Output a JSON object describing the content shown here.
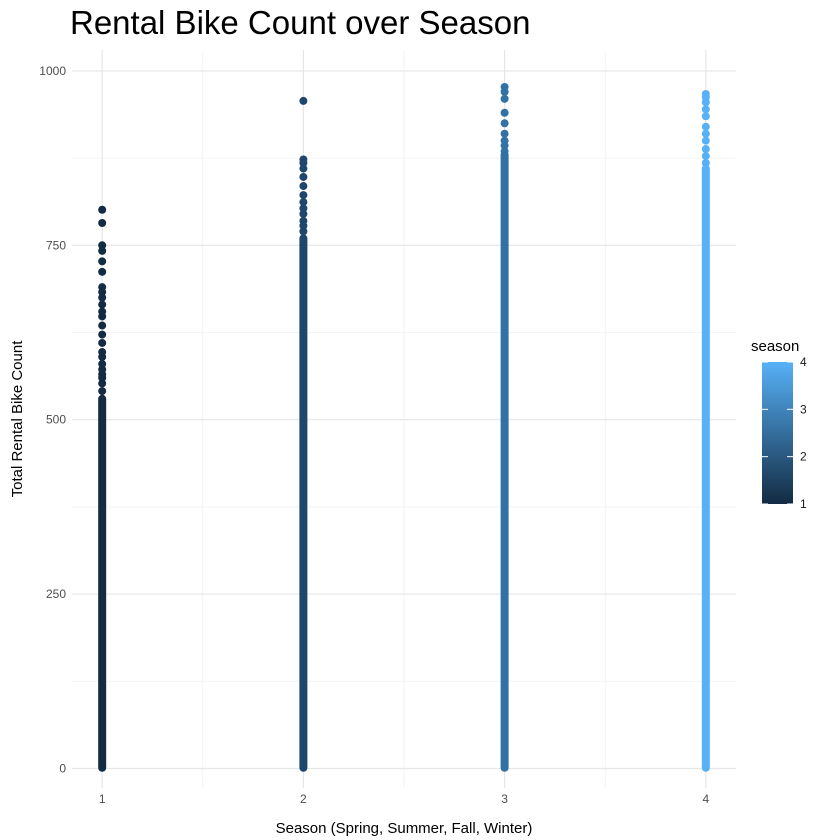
{
  "chart_data": {
    "type": "scatter",
    "title": "Rental Bike Count over Season",
    "xlabel": "Season (Spring, Summer, Fall, Winter)",
    "ylabel": "Total Rental Bike Count",
    "x_ticks": [
      "1",
      "2",
      "3",
      "4"
    ],
    "y_ticks": [
      "0",
      "250",
      "500",
      "750",
      "1000"
    ],
    "xlim": [
      0.85,
      4.15
    ],
    "ylim": [
      -28,
      1030
    ],
    "grid": true,
    "legend": {
      "title": "season",
      "placement": "right",
      "type": "colorbar",
      "labels": [
        "1",
        "2",
        "3",
        "4"
      ],
      "colors": [
        "#132B43",
        "#56B1F7"
      ]
    },
    "series": [
      {
        "x": 1,
        "color": "#132B43",
        "range": [
          1,
          530
        ],
        "outliers": [
          541,
          552,
          560,
          565,
          572,
          580,
          590,
          597,
          610,
          622,
          635,
          648,
          655,
          665,
          675,
          683,
          690,
          712,
          727,
          742,
          750,
          782,
          801
        ]
      },
      {
        "x": 2,
        "color": "#1F466C",
        "range": [
          1,
          760
        ],
        "outliers": [
          770,
          778,
          785,
          795,
          803,
          812,
          822,
          835,
          848,
          860,
          868,
          873,
          957
        ]
      },
      {
        "x": 3,
        "color": "#3271A6",
        "range": [
          1,
          880
        ],
        "outliers": [
          885,
          893,
          900,
          910,
          925,
          940,
          960,
          970,
          977
        ]
      },
      {
        "x": 4,
        "color": "#56B1F7",
        "range": [
          1,
          860
        ],
        "outliers": [
          868,
          878,
          888,
          900,
          910,
          920,
          935,
          945,
          955,
          962,
          967
        ]
      }
    ]
  }
}
